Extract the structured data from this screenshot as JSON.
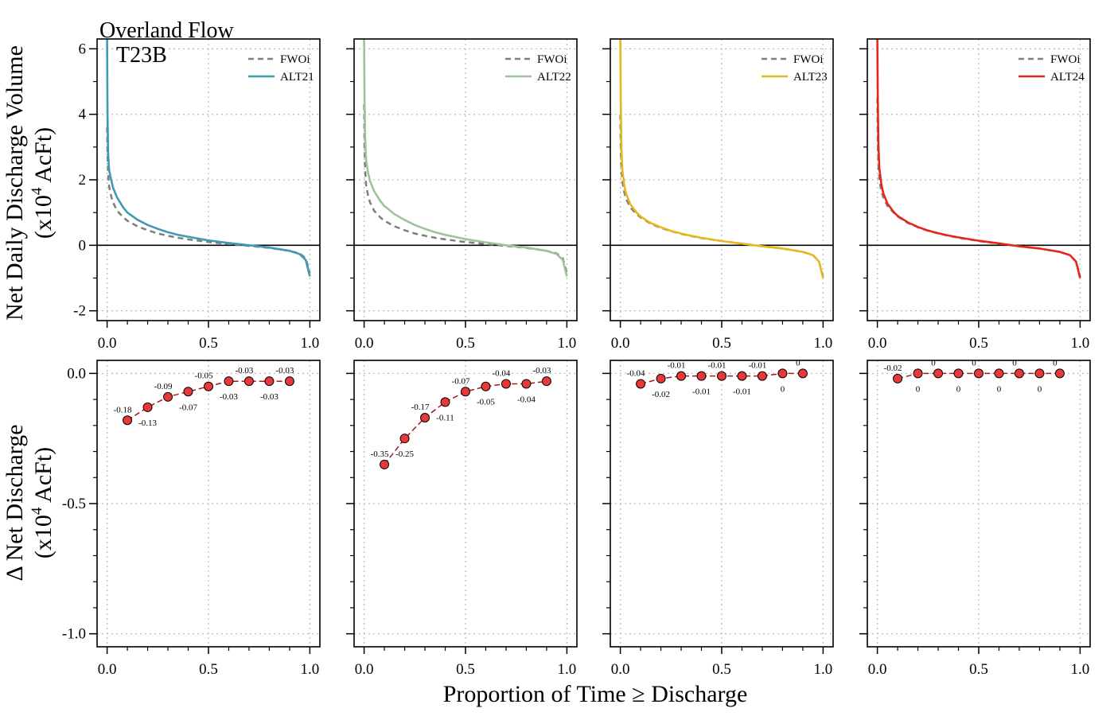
{
  "figure": {
    "title_line1": "Overland Flow",
    "title_line2": "T23B",
    "xlabel": "Proportion of Time ≥ Discharge",
    "top_ylabel_line1": "Net Daily Discharge Volume",
    "top_ylabel_line2_pre": "(x10",
    "top_ylabel_line2_sup": "4",
    "top_ylabel_line2_post": " AcFt)",
    "bottom_ylabel_line1": "Δ Net Discharge",
    "bottom_ylabel_line2_pre": "(x10",
    "bottom_ylabel_line2_sup": "4",
    "bottom_ylabel_line2_post": " AcFt)"
  },
  "colors": {
    "baseline": "#7f7f7f",
    "ALT21": "#3f9bb0",
    "ALT22": "#9cc39a",
    "ALT23": "#e6b81e",
    "ALT24": "#e6261a",
    "marker_fill": "#e8383a",
    "marker_line": "#9e1b1b",
    "grid": "#bdbdbd"
  },
  "chart_data": [
    {
      "type": "line",
      "panel": "top-1",
      "xlim": [
        0,
        1
      ],
      "ylim": [
        -2.3,
        6.3
      ],
      "xticks": [
        "0.0",
        "0.5",
        "1.0"
      ],
      "yticks": [
        "-2",
        "0",
        "2",
        "4",
        "6"
      ],
      "grid": true,
      "legend_position": "top-right",
      "series": [
        {
          "name": "FWOi",
          "style": "dashed",
          "x": [
            0.0,
            0.002,
            0.005,
            0.01,
            0.02,
            0.03,
            0.05,
            0.08,
            0.1,
            0.15,
            0.2,
            0.25,
            0.3,
            0.35,
            0.4,
            0.5,
            0.6,
            0.7,
            0.8,
            0.9,
            0.95,
            0.98,
            1.0
          ],
          "y": [
            3.6,
            2.8,
            2.2,
            1.8,
            1.5,
            1.3,
            1.05,
            0.85,
            0.75,
            0.58,
            0.46,
            0.36,
            0.29,
            0.23,
            0.18,
            0.1,
            0.04,
            -0.02,
            -0.08,
            -0.17,
            -0.25,
            -0.4,
            -0.85
          ]
        },
        {
          "name": "ALT21",
          "style": "solid",
          "x": [
            0.0,
            0.002,
            0.005,
            0.01,
            0.02,
            0.03,
            0.05,
            0.08,
            0.1,
            0.15,
            0.2,
            0.25,
            0.3,
            0.35,
            0.4,
            0.5,
            0.6,
            0.7,
            0.8,
            0.9,
            0.95,
            0.98,
            1.0
          ],
          "y": [
            6.3,
            4.0,
            2.8,
            2.3,
            2.0,
            1.75,
            1.45,
            1.15,
            1.0,
            0.78,
            0.62,
            0.5,
            0.4,
            0.32,
            0.26,
            0.15,
            0.07,
            0.0,
            -0.07,
            -0.17,
            -0.27,
            -0.45,
            -0.95
          ]
        }
      ]
    },
    {
      "type": "line",
      "panel": "top-2",
      "xlim": [
        0,
        1
      ],
      "ylim": [
        -2.3,
        6.3
      ],
      "xticks": [
        "0.0",
        "0.5",
        "1.0"
      ],
      "grid": true,
      "legend_position": "top-right",
      "series": [
        {
          "name": "FWOi",
          "style": "dashed",
          "x": [
            0.0,
            0.002,
            0.005,
            0.01,
            0.02,
            0.03,
            0.05,
            0.08,
            0.1,
            0.15,
            0.2,
            0.25,
            0.3,
            0.35,
            0.4,
            0.5,
            0.6,
            0.7,
            0.8,
            0.9,
            0.95,
            0.98,
            1.0
          ],
          "y": [
            4.3,
            3.0,
            2.3,
            1.85,
            1.5,
            1.3,
            1.05,
            0.85,
            0.75,
            0.58,
            0.46,
            0.36,
            0.29,
            0.23,
            0.18,
            0.1,
            0.04,
            -0.02,
            -0.08,
            -0.17,
            -0.25,
            -0.4,
            -0.85
          ]
        },
        {
          "name": "ALT22",
          "style": "solid",
          "x": [
            0.0,
            0.002,
            0.005,
            0.01,
            0.02,
            0.03,
            0.05,
            0.08,
            0.1,
            0.15,
            0.2,
            0.25,
            0.3,
            0.35,
            0.4,
            0.5,
            0.6,
            0.7,
            0.8,
            0.9,
            0.95,
            0.98,
            1.0
          ],
          "y": [
            6.3,
            4.5,
            3.3,
            2.6,
            2.2,
            1.95,
            1.65,
            1.35,
            1.2,
            0.95,
            0.77,
            0.62,
            0.5,
            0.4,
            0.32,
            0.19,
            0.09,
            0.0,
            -0.07,
            -0.17,
            -0.27,
            -0.45,
            -0.95
          ]
        }
      ]
    },
    {
      "type": "line",
      "panel": "top-3",
      "xlim": [
        0,
        1
      ],
      "ylim": [
        -2.3,
        6.3
      ],
      "xticks": [
        "0.0",
        "0.5",
        "1.0"
      ],
      "grid": true,
      "legend_position": "top-right",
      "series": [
        {
          "name": "FWOi",
          "style": "dashed",
          "x": [
            0.0,
            0.002,
            0.005,
            0.01,
            0.02,
            0.03,
            0.05,
            0.08,
            0.1,
            0.15,
            0.2,
            0.25,
            0.3,
            0.35,
            0.4,
            0.5,
            0.6,
            0.7,
            0.8,
            0.9,
            0.95,
            0.98,
            1.0
          ],
          "y": [
            4.0,
            3.0,
            2.4,
            1.95,
            1.6,
            1.4,
            1.15,
            0.95,
            0.85,
            0.66,
            0.53,
            0.43,
            0.35,
            0.28,
            0.22,
            0.13,
            0.05,
            -0.03,
            -0.1,
            -0.2,
            -0.3,
            -0.5,
            -0.95
          ]
        },
        {
          "name": "ALT23",
          "style": "solid",
          "x": [
            0.0,
            0.002,
            0.005,
            0.01,
            0.02,
            0.03,
            0.05,
            0.08,
            0.1,
            0.15,
            0.2,
            0.25,
            0.3,
            0.35,
            0.4,
            0.5,
            0.6,
            0.7,
            0.8,
            0.9,
            0.95,
            0.98,
            1.0
          ],
          "y": [
            6.3,
            4.5,
            3.0,
            2.3,
            1.8,
            1.55,
            1.25,
            1.0,
            0.88,
            0.68,
            0.55,
            0.44,
            0.36,
            0.29,
            0.23,
            0.13,
            0.05,
            -0.03,
            -0.1,
            -0.2,
            -0.3,
            -0.5,
            -1.0
          ]
        }
      ]
    },
    {
      "type": "line",
      "panel": "top-4",
      "xlim": [
        0,
        1
      ],
      "ylim": [
        -2.3,
        6.3
      ],
      "xticks": [
        "0.0",
        "0.5",
        "1.0"
      ],
      "grid": true,
      "legend_position": "top-right",
      "series": [
        {
          "name": "FWOi",
          "style": "dashed",
          "x": [
            0.0,
            0.002,
            0.005,
            0.01,
            0.02,
            0.03,
            0.05,
            0.08,
            0.1,
            0.15,
            0.2,
            0.25,
            0.3,
            0.35,
            0.4,
            0.5,
            0.6,
            0.7,
            0.8,
            0.9,
            0.95,
            0.98,
            1.0
          ],
          "y": [
            4.5,
            3.2,
            2.5,
            2.0,
            1.65,
            1.45,
            1.2,
            1.0,
            0.88,
            0.68,
            0.55,
            0.44,
            0.36,
            0.29,
            0.23,
            0.13,
            0.05,
            -0.03,
            -0.1,
            -0.2,
            -0.3,
            -0.5,
            -0.95
          ]
        },
        {
          "name": "ALT24",
          "style": "solid",
          "x": [
            0.0,
            0.002,
            0.005,
            0.01,
            0.02,
            0.03,
            0.05,
            0.08,
            0.1,
            0.15,
            0.2,
            0.25,
            0.3,
            0.35,
            0.4,
            0.5,
            0.6,
            0.7,
            0.8,
            0.9,
            0.95,
            0.98,
            1.0
          ],
          "y": [
            6.3,
            4.6,
            3.1,
            2.35,
            1.85,
            1.58,
            1.27,
            1.02,
            0.9,
            0.7,
            0.56,
            0.45,
            0.37,
            0.3,
            0.24,
            0.14,
            0.06,
            -0.03,
            -0.1,
            -0.2,
            -0.3,
            -0.5,
            -1.0
          ]
        }
      ]
    },
    {
      "type": "scatter",
      "panel": "bottom-1",
      "xlim": [
        0,
        1
      ],
      "ylim": [
        -1.05,
        0.05
      ],
      "xticks": [
        "0.0",
        "0.5",
        "1.0"
      ],
      "yticks": [
        "-1.0",
        "-0.5",
        "0.0"
      ],
      "grid": true,
      "x": [
        0.1,
        0.2,
        0.3,
        0.4,
        0.5,
        0.6,
        0.7,
        0.8,
        0.9
      ],
      "y": [
        -0.18,
        -0.13,
        -0.09,
        -0.07,
        -0.05,
        -0.03,
        -0.03,
        -0.03,
        -0.03
      ],
      "labels": [
        "-0.18",
        "-0.13",
        "-0.09",
        "-0.07",
        "-0.05",
        "-0.03",
        "-0.03",
        "-0.03",
        "-0.03"
      ]
    },
    {
      "type": "scatter",
      "panel": "bottom-2",
      "xlim": [
        0,
        1
      ],
      "ylim": [
        -1.05,
        0.05
      ],
      "xticks": [
        "0.0",
        "0.5",
        "1.0"
      ],
      "grid": true,
      "x": [
        0.1,
        0.2,
        0.3,
        0.4,
        0.5,
        0.6,
        0.7,
        0.8,
        0.9
      ],
      "y": [
        -0.35,
        -0.25,
        -0.17,
        -0.11,
        -0.07,
        -0.05,
        -0.04,
        -0.04,
        -0.03
      ],
      "labels": [
        "-0.35",
        "-0.25",
        "-0.17",
        "-0.11",
        "-0.07",
        "-0.05",
        "-0.04",
        "-0.04",
        "-0.03"
      ]
    },
    {
      "type": "scatter",
      "panel": "bottom-3",
      "xlim": [
        0,
        1
      ],
      "ylim": [
        -1.05,
        0.05
      ],
      "xticks": [
        "0.0",
        "0.5",
        "1.0"
      ],
      "grid": true,
      "x": [
        0.1,
        0.2,
        0.3,
        0.4,
        0.5,
        0.6,
        0.7,
        0.8,
        0.9
      ],
      "y": [
        -0.04,
        -0.02,
        -0.01,
        -0.01,
        -0.01,
        -0.01,
        -0.01,
        0,
        0
      ],
      "labels": [
        "-0.04",
        "-0.02",
        "-0.01",
        "-0.01",
        "-0.01",
        "-0.01",
        "-0.01",
        "0",
        "0"
      ]
    },
    {
      "type": "scatter",
      "panel": "bottom-4",
      "xlim": [
        0,
        1
      ],
      "ylim": [
        -1.05,
        0.05
      ],
      "xticks": [
        "0.0",
        "0.5",
        "1.0"
      ],
      "grid": true,
      "x": [
        0.1,
        0.2,
        0.3,
        0.4,
        0.5,
        0.6,
        0.7,
        0.8,
        0.9
      ],
      "y": [
        -0.02,
        0,
        0,
        0,
        0,
        0,
        0,
        0,
        0
      ],
      "labels": [
        "-0.02",
        "0",
        "0",
        "0",
        "0",
        "0",
        "0",
        "0",
        "0"
      ]
    }
  ]
}
